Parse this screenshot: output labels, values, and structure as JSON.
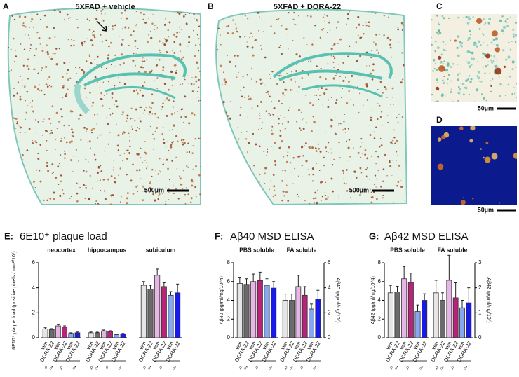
{
  "panels": [
    {
      "label": "A",
      "title": "5XFAD  + vehicle",
      "scale": "500µm"
    },
    {
      "label": "B",
      "title": "5XFAD + DORA-22",
      "scale": "500µm"
    },
    {
      "label": "C",
      "scale": "50µm"
    },
    {
      "label": "D",
      "scale": "50µm"
    }
  ],
  "chart_data": [
    {
      "type": "bar",
      "label": "E:",
      "title": "6E10⁺ plaque load",
      "y_label": "6E10⁺ plaque load (positive pixels / mm²/10⁷)",
      "ylim": [
        0,
        6
      ],
      "yticks": [
        0,
        2,
        4,
        6
      ],
      "categories": [
        "veh",
        "DORA-22",
        "veh",
        "DORA-22",
        "veh",
        "DORA-22"
      ],
      "sex_labels": [
        "♀♂",
        "♀",
        "♂"
      ],
      "colors": [
        "#e6e6e6",
        "#6b6b6b",
        "#e7b5e6",
        "#b8247a",
        "#87a8f0",
        "#1a1ae6"
      ],
      "groups": [
        {
          "name": "neocortex",
          "values": [
            0.7,
            0.65,
            0.95,
            0.85,
            0.35,
            0.4
          ],
          "errors": [
            0.1,
            0.08,
            0.1,
            0.1,
            0.05,
            0.06
          ]
        },
        {
          "name": "hippocampus",
          "values": [
            0.4,
            0.4,
            0.55,
            0.5,
            0.25,
            0.3
          ],
          "errors": [
            0.06,
            0.05,
            0.07,
            0.06,
            0.04,
            0.05
          ]
        },
        {
          "name": "subiculum",
          "values": [
            4.2,
            3.9,
            5.0,
            4.1,
            3.4,
            3.6
          ],
          "errors": [
            0.3,
            0.3,
            0.5,
            0.3,
            0.3,
            0.7
          ]
        }
      ]
    },
    {
      "type": "bar",
      "label": "F:",
      "title": "Aβ40 MSD ELISA",
      "y_label": "Aβ40 (pg/ml/mg/10^4)",
      "ylim": [
        0,
        8
      ],
      "yticks": [
        0,
        2,
        4,
        6,
        8
      ],
      "y2_label": "Aβ40 (pg/ml/mg/10⁷)",
      "y2lim": [
        0,
        6
      ],
      "y2ticks": [
        0,
        2,
        4,
        6
      ],
      "categories": [
        "veh",
        "DORA-22",
        "veh",
        "DORA-22",
        "veh",
        "DORA-22"
      ],
      "sex_labels": [
        "♀♂",
        "♀",
        "♂"
      ],
      "colors": [
        "#e6e6e6",
        "#6b6b6b",
        "#e7b5e6",
        "#b8247a",
        "#87a8f0",
        "#1a1ae6"
      ],
      "groups": [
        {
          "name": "PBS soluble",
          "values": [
            5.8,
            5.7,
            6.0,
            6.1,
            5.6,
            5.3
          ],
          "errors": [
            0.6,
            0.6,
            0.8,
            0.9,
            0.7,
            0.7
          ]
        },
        {
          "name": "FA soluble",
          "axis": "y2",
          "values": [
            3.0,
            3.0,
            4.1,
            3.4,
            2.3,
            3.1
          ],
          "errors": [
            0.5,
            0.5,
            0.9,
            0.7,
            0.4,
            0.7
          ]
        }
      ]
    },
    {
      "type": "bar",
      "label": "G:",
      "title": "Aβ42 MSD ELISA",
      "y_label": "Aβ42 (pg/ml/mg/10^4)",
      "ylim": [
        0,
        8
      ],
      "yticks": [
        0,
        2,
        4,
        6,
        8
      ],
      "y2_label": "Aβ42 (pg/ml/mg/10⁷)",
      "y2lim": [
        0,
        3
      ],
      "y2ticks": [
        0,
        1,
        2,
        3
      ],
      "categories": [
        "veh",
        "DORA-22",
        "veh",
        "DORA-22",
        "veh",
        "DORA-22"
      ],
      "sex_labels": [
        "♀♂",
        "♀",
        "♂"
      ],
      "colors": [
        "#e6e6e6",
        "#6b6b6b",
        "#e7b5e6",
        "#b8247a",
        "#87a8f0",
        "#1a1ae6"
      ],
      "groups": [
        {
          "name": "PBS soluble",
          "values": [
            4.8,
            4.9,
            6.3,
            5.9,
            2.8,
            4.0
          ],
          "errors": [
            0.8,
            0.6,
            1.3,
            1.0,
            0.7,
            0.7
          ]
        },
        {
          "name": "FA soluble",
          "axis": "y2",
          "values": [
            1.8,
            1.5,
            2.3,
            1.6,
            1.2,
            1.4
          ],
          "errors": [
            0.5,
            0.3,
            1.0,
            0.6,
            0.3,
            0.6
          ]
        }
      ]
    }
  ]
}
